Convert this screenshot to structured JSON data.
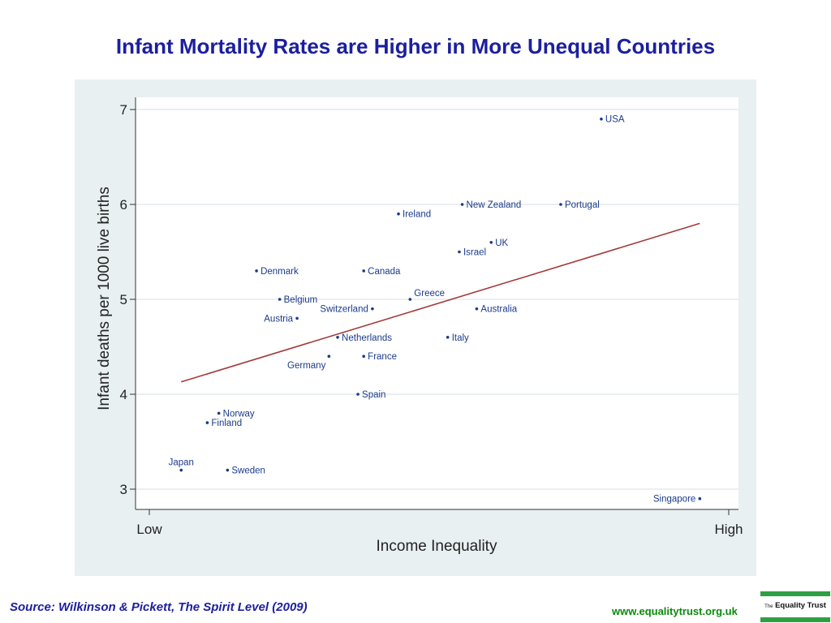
{
  "title": "Infant Mortality Rates are Higher in More Unequal Countries",
  "footer": {
    "source": "Source: Wilkinson & Pickett, The Spirit Level (2009)",
    "website": "www.equalitytrust.org.uk",
    "logo_prefix": "The",
    "logo_name": "Equality Trust"
  },
  "colors": {
    "title": "#1b1f9e",
    "panel_background": "#e9f0f2",
    "points": "#1b3a8a",
    "fit_line": "#a33a3a",
    "website": "#0b8a0b",
    "logo_accent": "#2ea043"
  },
  "chart_data": {
    "type": "scatter",
    "xlabel": "Income Inequality",
    "ylabel": "Infant deaths per 1000 live births",
    "x_tick_labels": [
      "Low",
      "High"
    ],
    "xlim": [
      0,
      100
    ],
    "ylim": [
      2.75,
      7.1
    ],
    "y_ticks": [
      3,
      4,
      5,
      6,
      7
    ],
    "grid": "horizontal",
    "points": [
      {
        "country": "USA",
        "x": 78,
        "y": 6.9,
        "label_pos": "right"
      },
      {
        "country": "New Zealand",
        "x": 54,
        "y": 6.0,
        "label_pos": "right"
      },
      {
        "country": "Portugal",
        "x": 71,
        "y": 6.0,
        "label_pos": "right"
      },
      {
        "country": "Ireland",
        "x": 43,
        "y": 5.9,
        "label_pos": "right"
      },
      {
        "country": "UK",
        "x": 59,
        "y": 5.6,
        "label_pos": "right"
      },
      {
        "country": "Israel",
        "x": 53.5,
        "y": 5.5,
        "label_pos": "right"
      },
      {
        "country": "Denmark",
        "x": 18.5,
        "y": 5.3,
        "label_pos": "right"
      },
      {
        "country": "Canada",
        "x": 37,
        "y": 5.3,
        "label_pos": "right"
      },
      {
        "country": "Belgium",
        "x": 22.5,
        "y": 5.0,
        "label_pos": "right"
      },
      {
        "country": "Greece",
        "x": 45,
        "y": 5.0,
        "label_pos": "above-right"
      },
      {
        "country": "Switzerland",
        "x": 38.5,
        "y": 4.9,
        "label_pos": "left"
      },
      {
        "country": "Australia",
        "x": 56.5,
        "y": 4.9,
        "label_pos": "right"
      },
      {
        "country": "Austria",
        "x": 25.5,
        "y": 4.8,
        "label_pos": "left"
      },
      {
        "country": "Netherlands",
        "x": 32.5,
        "y": 4.6,
        "label_pos": "right"
      },
      {
        "country": "Italy",
        "x": 51.5,
        "y": 4.6,
        "label_pos": "right"
      },
      {
        "country": "France",
        "x": 37,
        "y": 4.4,
        "label_pos": "right"
      },
      {
        "country": "Germany",
        "x": 31,
        "y": 4.4,
        "label_pos": "below-left"
      },
      {
        "country": "Spain",
        "x": 36,
        "y": 4.0,
        "label_pos": "right"
      },
      {
        "country": "Norway",
        "x": 12,
        "y": 3.8,
        "label_pos": "right"
      },
      {
        "country": "Finland",
        "x": 10,
        "y": 3.7,
        "label_pos": "right"
      },
      {
        "country": "Japan",
        "x": 5.5,
        "y": 3.2,
        "label_pos": "above"
      },
      {
        "country": "Sweden",
        "x": 13.5,
        "y": 3.2,
        "label_pos": "right"
      },
      {
        "country": "Singapore",
        "x": 95,
        "y": 2.9,
        "label_pos": "left"
      }
    ],
    "fit_line": {
      "x": [
        5.5,
        95
      ],
      "y": [
        4.13,
        5.8
      ]
    }
  }
}
